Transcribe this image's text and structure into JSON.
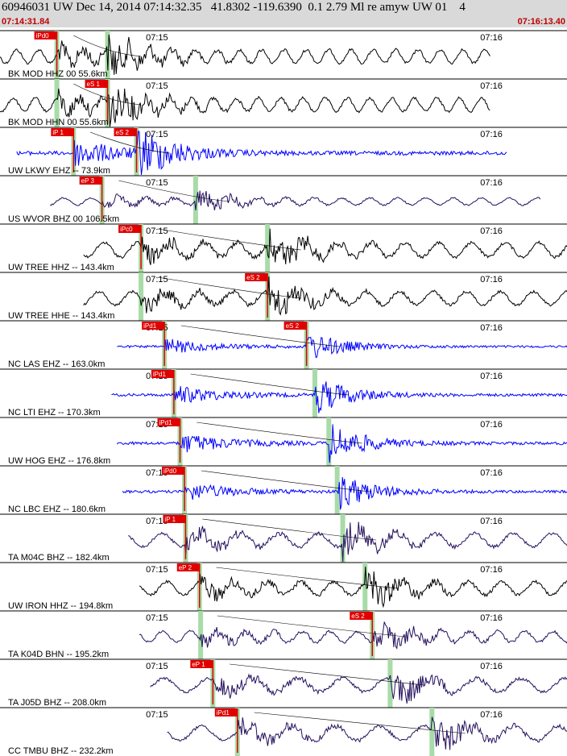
{
  "header": {
    "title": "60946031 UW Dec 14, 2014 07:14:32.35   41.8302 -119.6390  0.1 2.79 Ml re amyw UW 01    4",
    "start_time": "07:14:31.84",
    "end_time": "07:16:13.40"
  },
  "colors": {
    "header_bg": "#d9d9d9",
    "header_time": "#c00000",
    "pick_box": "#e00000",
    "phase_window": "#a8dba8",
    "trace_black": "#000000",
    "trace_blue": "#0000ff",
    "trace_navy": "#24105e"
  },
  "chart_data": {
    "type": "line",
    "title": "60946031 UW Dec 14, 2014 07:14:32.35   41.8302 -119.6390  0.1 2.79 Ml re amyw UW 01    4",
    "time_range": [
      "07:14:31.84",
      "07:16:13.40"
    ],
    "tick_labels": [
      "07:15",
      "07:16"
    ],
    "tick_times_s": [
      28.16,
      88.16
    ],
    "traces": [
      {
        "label": "BK MOD HHZ 00 55.6km",
        "color": "black",
        "dist_km": 55.6,
        "start_s": 0,
        "end_s": 88,
        "p_s": 10.2,
        "s_s": 19.3,
        "amp": 0.55,
        "period_s": 4,
        "picks": [
          "iPd0",
          ""
        ]
      },
      {
        "label": "BK MOD HHN 00 55.6km",
        "color": "black",
        "dist_km": 55.6,
        "start_s": 0,
        "end_s": 88,
        "p_s": 10.2,
        "s_s": 19.3,
        "amp": 0.55,
        "period_s": 4,
        "picks": [
          "",
          "eS 1"
        ]
      },
      {
        "label": "UW LKWY EHZ -- 73.9km",
        "color": "blue",
        "dist_km": 73.9,
        "start_s": 3,
        "end_s": 91,
        "p_s": 13.2,
        "s_s": 24.5,
        "amp": 0.8,
        "period_s": 0,
        "picks": [
          "iP 1",
          "eS 2"
        ]
      },
      {
        "label": "US WVOR BHZ 00 106.5km",
        "color": "navy",
        "dist_km": 106.5,
        "start_s": 9,
        "end_s": 97,
        "p_s": 18.3,
        "s_s": 35.1,
        "amp": 0.3,
        "period_s": 5,
        "picks": [
          "eP 3",
          ""
        ]
      },
      {
        "label": "UW TREE HHZ -- 143.4km",
        "color": "black",
        "dist_km": 143.4,
        "start_s": 15,
        "end_s": 103,
        "p_s": 25.3,
        "s_s": 48.0,
        "amp": 0.6,
        "period_s": 6,
        "picks": [
          "iPc0",
          ""
        ]
      },
      {
        "label": "UW TREE HHE -- 143.4km",
        "color": "black",
        "dist_km": 143.4,
        "start_s": 15,
        "end_s": 103,
        "p_s": 25.3,
        "s_s": 48.0,
        "amp": 0.55,
        "period_s": 6,
        "picks": [
          "",
          "eS 2"
        ]
      },
      {
        "label": "NC LAS EHZ -- 163.0km",
        "color": "blue",
        "dist_km": 163.0,
        "start_s": 21,
        "end_s": 109,
        "p_s": 29.5,
        "s_s": 55.0,
        "amp": 0.45,
        "period_s": 0,
        "picks": [
          "iPd1",
          "eS 2"
        ]
      },
      {
        "label": "NC LTI EHZ -- 170.3km",
        "color": "blue",
        "dist_km": 170.3,
        "start_s": 20,
        "end_s": 108,
        "p_s": 31.2,
        "s_s": 56.5,
        "amp": 0.55,
        "period_s": 0,
        "picks": [
          "iPd1",
          ""
        ]
      },
      {
        "label": "UW HOG EHZ -- 176.8km",
        "color": "blue",
        "dist_km": 176.8,
        "start_s": 21,
        "end_s": 109,
        "p_s": 32.3,
        "s_s": 59.0,
        "amp": 0.6,
        "period_s": 0,
        "picks": [
          "iPd1",
          ""
        ]
      },
      {
        "label": "NC LBC EHZ -- 180.6km",
        "color": "blue",
        "dist_km": 180.6,
        "start_s": 22,
        "end_s": 110,
        "p_s": 33.1,
        "s_s": 60.5,
        "amp": 0.55,
        "period_s": 0,
        "picks": [
          "iPd0",
          ""
        ]
      },
      {
        "label": "TA M04C BHZ -- 182.4km",
        "color": "navy",
        "dist_km": 182.4,
        "start_s": 23,
        "end_s": 111,
        "p_s": 33.3,
        "s_s": 61.5,
        "amp": 0.55,
        "period_s": 7,
        "picks": [
          "iP 1",
          ""
        ]
      },
      {
        "label": "UW IRON HHZ -- 194.8km",
        "color": "black",
        "dist_km": 194.8,
        "start_s": 25,
        "end_s": 113,
        "p_s": 35.8,
        "s_s": 65.5,
        "amp": 0.55,
        "period_s": 6,
        "picks": [
          "eP 2",
          ""
        ]
      },
      {
        "label": "TA K04D BHN -- 195.2km",
        "color": "navy",
        "dist_km": 195.2,
        "start_s": 25,
        "end_s": 113,
        "p_s": 36.0,
        "s_s": 66.8,
        "amp": 0.45,
        "period_s": 5,
        "picks": [
          "",
          "eS 2"
        ]
      },
      {
        "label": "TA J05D BHZ -- 208.0km",
        "color": "navy",
        "dist_km": 208.0,
        "start_s": 27,
        "end_s": 115,
        "p_s": 38.2,
        "s_s": 70.0,
        "amp": 0.55,
        "period_s": 8,
        "picks": [
          "eP 1",
          ""
        ]
      },
      {
        "label": "CC TMBU BHZ -- 232.2km",
        "color": "navy",
        "dist_km": 232.2,
        "start_s": 30,
        "end_s": 118,
        "p_s": 42.6,
        "s_s": 77.5,
        "amp": 0.6,
        "period_s": 8,
        "picks": [
          "iPd1",
          ""
        ]
      }
    ]
  }
}
